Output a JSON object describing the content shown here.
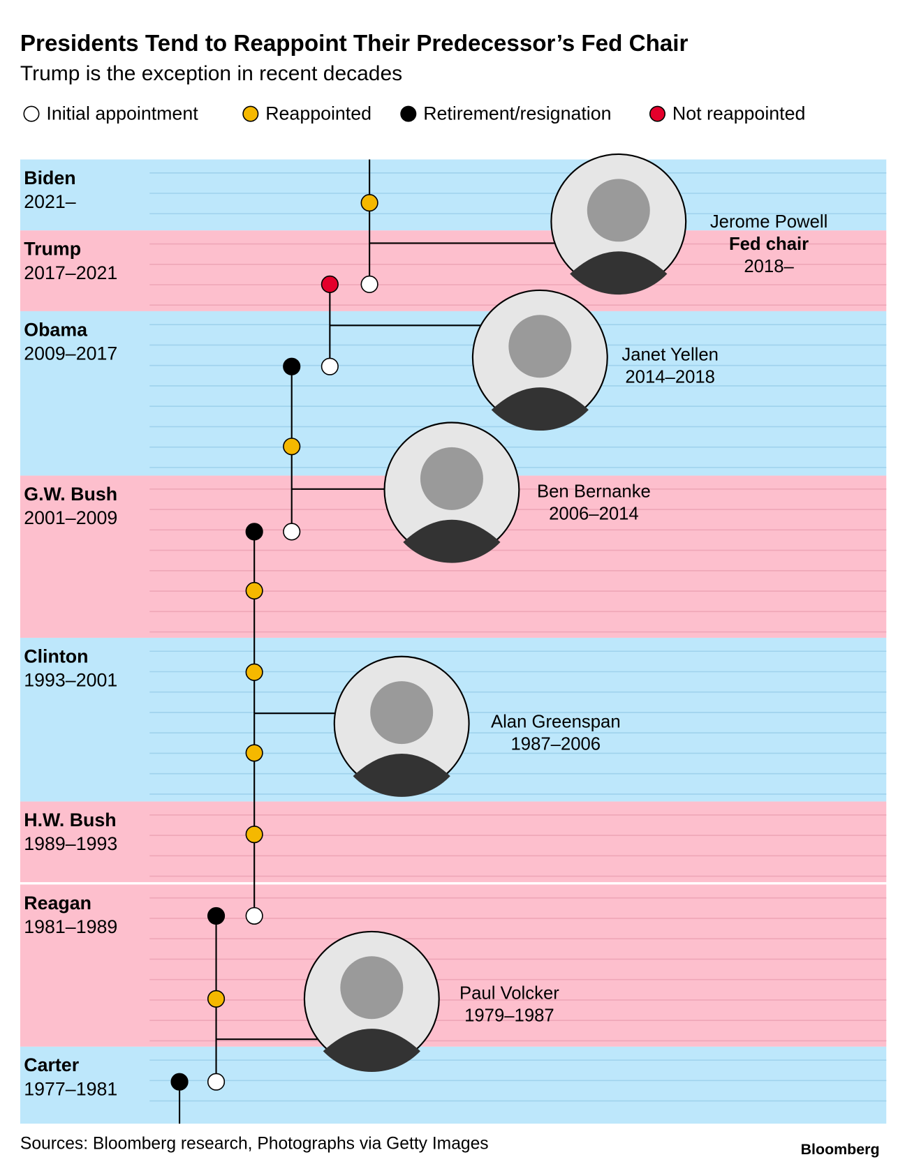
{
  "header": {
    "title": "Presidents Tend to Reappoint Their Predecessor’s Fed Chair",
    "subtitle": "Trump is the exception in recent decades"
  },
  "legend": [
    "Initial appointment",
    "Reappointed",
    "Retirement/resignation",
    "Not reappointed"
  ],
  "presidents": [
    {
      "name": "Biden",
      "years": "2021–"
    },
    {
      "name": "Trump",
      "years": "2017–2021"
    },
    {
      "name": "Obama",
      "years": "2009–2017"
    },
    {
      "name": "G.W. Bush",
      "years": "2001–2009"
    },
    {
      "name": "Clinton",
      "years": "1993–2001"
    },
    {
      "name": "H.W. Bush",
      "years": "1989–1993"
    },
    {
      "name": "Reagan",
      "years": "1981–1989"
    },
    {
      "name": "Carter",
      "years": "1977–1981"
    }
  ],
  "chairs": [
    {
      "name": "Jerome Powell",
      "role": "Fed chair",
      "years": "2018–"
    },
    {
      "name": "Janet Yellen",
      "years": "2014–2018"
    },
    {
      "name": "Ben Bernanke",
      "years": "2006–2014"
    },
    {
      "name": "Alan Greenspan",
      "years": "1987–2006"
    },
    {
      "name": "Paul Volcker",
      "years": "1979–1987"
    }
  ],
  "footer": {
    "source": "Sources: Bloomberg research, Photographs via Getty Images",
    "brand": "Bloomberg"
  }
}
